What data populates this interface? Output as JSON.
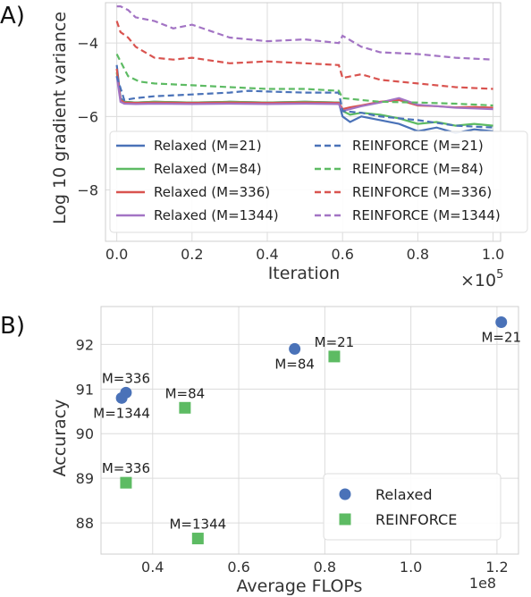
{
  "chart_data": [
    {
      "type": "line",
      "panel_label": "A)",
      "xlabel": "Iteration",
      "ylabel": "Log 10 gradient variance",
      "x_multiplier": "×10",
      "x_multiplier_exp": "5",
      "xlim": [
        -0.03,
        1.02
      ],
      "ylim": [
        -9.4,
        -2.9
      ],
      "xticks": [
        0.0,
        0.2,
        0.4,
        0.6,
        0.8,
        1.0
      ],
      "xtick_labels": [
        "0.0",
        "0.2",
        "0.4",
        "0.6",
        "0.8",
        "1.0"
      ],
      "yticks": [
        -4,
        -6,
        -8
      ],
      "ytick_labels": [
        "−4",
        "−6",
        "−8"
      ],
      "grid": true,
      "legend_position": "lower-center",
      "series": [
        {
          "name": "Relaxed (M=21)",
          "color": "#4a72b8",
          "dash": "solid",
          "x": [
            0,
            0.01,
            0.02,
            0.05,
            0.1,
            0.2,
            0.3,
            0.4,
            0.5,
            0.59,
            0.6,
            0.62,
            0.65,
            0.7,
            0.75,
            0.8,
            0.85,
            0.9,
            0.95,
            1.0
          ],
          "y": [
            -4.6,
            -5.5,
            -5.6,
            -5.62,
            -5.6,
            -5.62,
            -5.6,
            -5.62,
            -5.6,
            -5.62,
            -6.0,
            -6.15,
            -6.0,
            -6.1,
            -6.2,
            -6.4,
            -6.3,
            -6.45,
            -6.35,
            -6.4
          ]
        },
        {
          "name": "Relaxed (M=84)",
          "color": "#5dbb63",
          "dash": "solid",
          "x": [
            0,
            0.01,
            0.02,
            0.05,
            0.1,
            0.2,
            0.3,
            0.4,
            0.5,
            0.59,
            0.6,
            0.62,
            0.65,
            0.7,
            0.75,
            0.8,
            0.85,
            0.9,
            0.95,
            1.0
          ],
          "y": [
            -4.8,
            -5.55,
            -5.6,
            -5.62,
            -5.6,
            -5.62,
            -5.6,
            -5.62,
            -5.6,
            -5.62,
            -5.85,
            -5.95,
            -5.9,
            -5.95,
            -6.05,
            -6.2,
            -6.15,
            -6.25,
            -6.2,
            -6.25
          ]
        },
        {
          "name": "Relaxed (M=336)",
          "color": "#d9534f",
          "dash": "solid",
          "x": [
            0,
            0.01,
            0.02,
            0.05,
            0.1,
            0.2,
            0.3,
            0.4,
            0.5,
            0.59,
            0.6,
            0.62,
            0.65,
            0.7,
            0.75,
            0.8,
            0.85,
            0.9,
            0.95,
            1.0
          ],
          "y": [
            -4.7,
            -5.55,
            -5.62,
            -5.63,
            -5.62,
            -5.63,
            -5.62,
            -5.63,
            -5.62,
            -5.63,
            -5.8,
            -5.75,
            -5.7,
            -5.6,
            -5.55,
            -5.7,
            -5.72,
            -5.75,
            -5.74,
            -5.76
          ]
        },
        {
          "name": "Relaxed (M=1344)",
          "color": "#a374c4",
          "dash": "solid",
          "x": [
            0,
            0.01,
            0.02,
            0.05,
            0.1,
            0.2,
            0.3,
            0.4,
            0.5,
            0.59,
            0.6,
            0.62,
            0.65,
            0.7,
            0.75,
            0.8,
            0.85,
            0.9,
            0.95,
            1.0
          ],
          "y": [
            -4.9,
            -5.6,
            -5.65,
            -5.66,
            -5.65,
            -5.66,
            -5.65,
            -5.66,
            -5.65,
            -5.66,
            -5.85,
            -5.8,
            -5.72,
            -5.62,
            -5.5,
            -5.68,
            -5.72,
            -5.76,
            -5.78,
            -5.8
          ]
        },
        {
          "name": "REINFORCE (M=21)",
          "color": "#4a72b8",
          "dash": "dashed",
          "x": [
            0,
            0.02,
            0.05,
            0.1,
            0.2,
            0.3,
            0.35,
            0.4,
            0.5,
            0.59,
            0.6,
            0.65,
            0.7,
            0.8,
            0.9,
            1.0
          ],
          "y": [
            -4.9,
            -5.55,
            -5.5,
            -5.45,
            -5.4,
            -5.35,
            -5.3,
            -5.32,
            -5.35,
            -5.35,
            -5.85,
            -5.9,
            -6.0,
            -6.1,
            -6.25,
            -6.3
          ]
        },
        {
          "name": "REINFORCE (M=84)",
          "color": "#5dbb63",
          "dash": "dashed",
          "x": [
            0,
            0.01,
            0.03,
            0.06,
            0.1,
            0.2,
            0.3,
            0.4,
            0.5,
            0.59,
            0.6,
            0.65,
            0.7,
            0.8,
            0.9,
            1.0
          ],
          "y": [
            -4.3,
            -4.5,
            -4.9,
            -5.05,
            -5.1,
            -5.15,
            -5.2,
            -5.25,
            -5.25,
            -5.3,
            -5.5,
            -5.55,
            -5.6,
            -5.62,
            -5.65,
            -5.7
          ]
        },
        {
          "name": "REINFORCE (M=336)",
          "color": "#d9534f",
          "dash": "dashed",
          "x": [
            0,
            0.01,
            0.03,
            0.05,
            0.1,
            0.15,
            0.2,
            0.3,
            0.4,
            0.5,
            0.59,
            0.6,
            0.65,
            0.7,
            0.8,
            0.9,
            1.0
          ],
          "y": [
            -3.4,
            -3.7,
            -3.85,
            -4.1,
            -4.4,
            -4.45,
            -4.4,
            -4.55,
            -4.5,
            -4.55,
            -4.6,
            -4.95,
            -4.85,
            -5.0,
            -5.1,
            -5.2,
            -5.25
          ]
        },
        {
          "name": "REINFORCE (M=1344)",
          "color": "#a374c4",
          "dash": "dashed",
          "x": [
            0,
            0.01,
            0.03,
            0.05,
            0.1,
            0.15,
            0.2,
            0.3,
            0.4,
            0.5,
            0.59,
            0.6,
            0.65,
            0.7,
            0.8,
            0.9,
            1.0
          ],
          "y": [
            -3.0,
            -3.0,
            -3.1,
            -3.3,
            -3.4,
            -3.6,
            -3.5,
            -3.85,
            -3.95,
            -3.9,
            -4.0,
            -3.8,
            -4.1,
            -4.25,
            -4.3,
            -4.4,
            -4.45
          ]
        }
      ]
    },
    {
      "type": "scatter",
      "panel_label": "B)",
      "xlabel": "Average FLOPs",
      "ylabel": "Accuracy",
      "x_multiplier": "1e8",
      "xlim": [
        0.28,
        1.25
      ],
      "ylim": [
        87.3,
        92.85
      ],
      "xticks": [
        0.4,
        0.6,
        0.8,
        1.0,
        1.2
      ],
      "xtick_labels": [
        "0.4",
        "0.6",
        "0.8",
        "1.0",
        "1.2"
      ],
      "yticks": [
        88,
        89,
        90,
        91,
        92
      ],
      "ytick_labels": [
        "88",
        "89",
        "90",
        "91",
        "92"
      ],
      "grid": true,
      "legend_position": "lower-right",
      "series": [
        {
          "name": "Relaxed",
          "color": "#4a72b8",
          "marker": "circle",
          "points": [
            {
              "x": 1.21,
              "y": 92.5,
              "label": "M=21",
              "label_pos": "below"
            },
            {
              "x": 0.73,
              "y": 91.9,
              "label": "M=84",
              "label_pos": "below"
            },
            {
              "x": 0.338,
              "y": 90.92,
              "label": "M=336",
              "label_pos": "above"
            },
            {
              "x": 0.328,
              "y": 90.8,
              "label": "M=1344",
              "label_pos": "below"
            }
          ]
        },
        {
          "name": "REINFORCE",
          "color": "#5dbb63",
          "marker": "square",
          "points": [
            {
              "x": 0.822,
              "y": 91.73,
              "label": "M=21",
              "label_pos": "above"
            },
            {
              "x": 0.475,
              "y": 90.58,
              "label": "M=84",
              "label_pos": "above"
            },
            {
              "x": 0.338,
              "y": 88.9,
              "label": "M=336",
              "label_pos": "above"
            },
            {
              "x": 0.505,
              "y": 87.65,
              "label": "M=1344",
              "label_pos": "above"
            }
          ]
        }
      ]
    }
  ]
}
